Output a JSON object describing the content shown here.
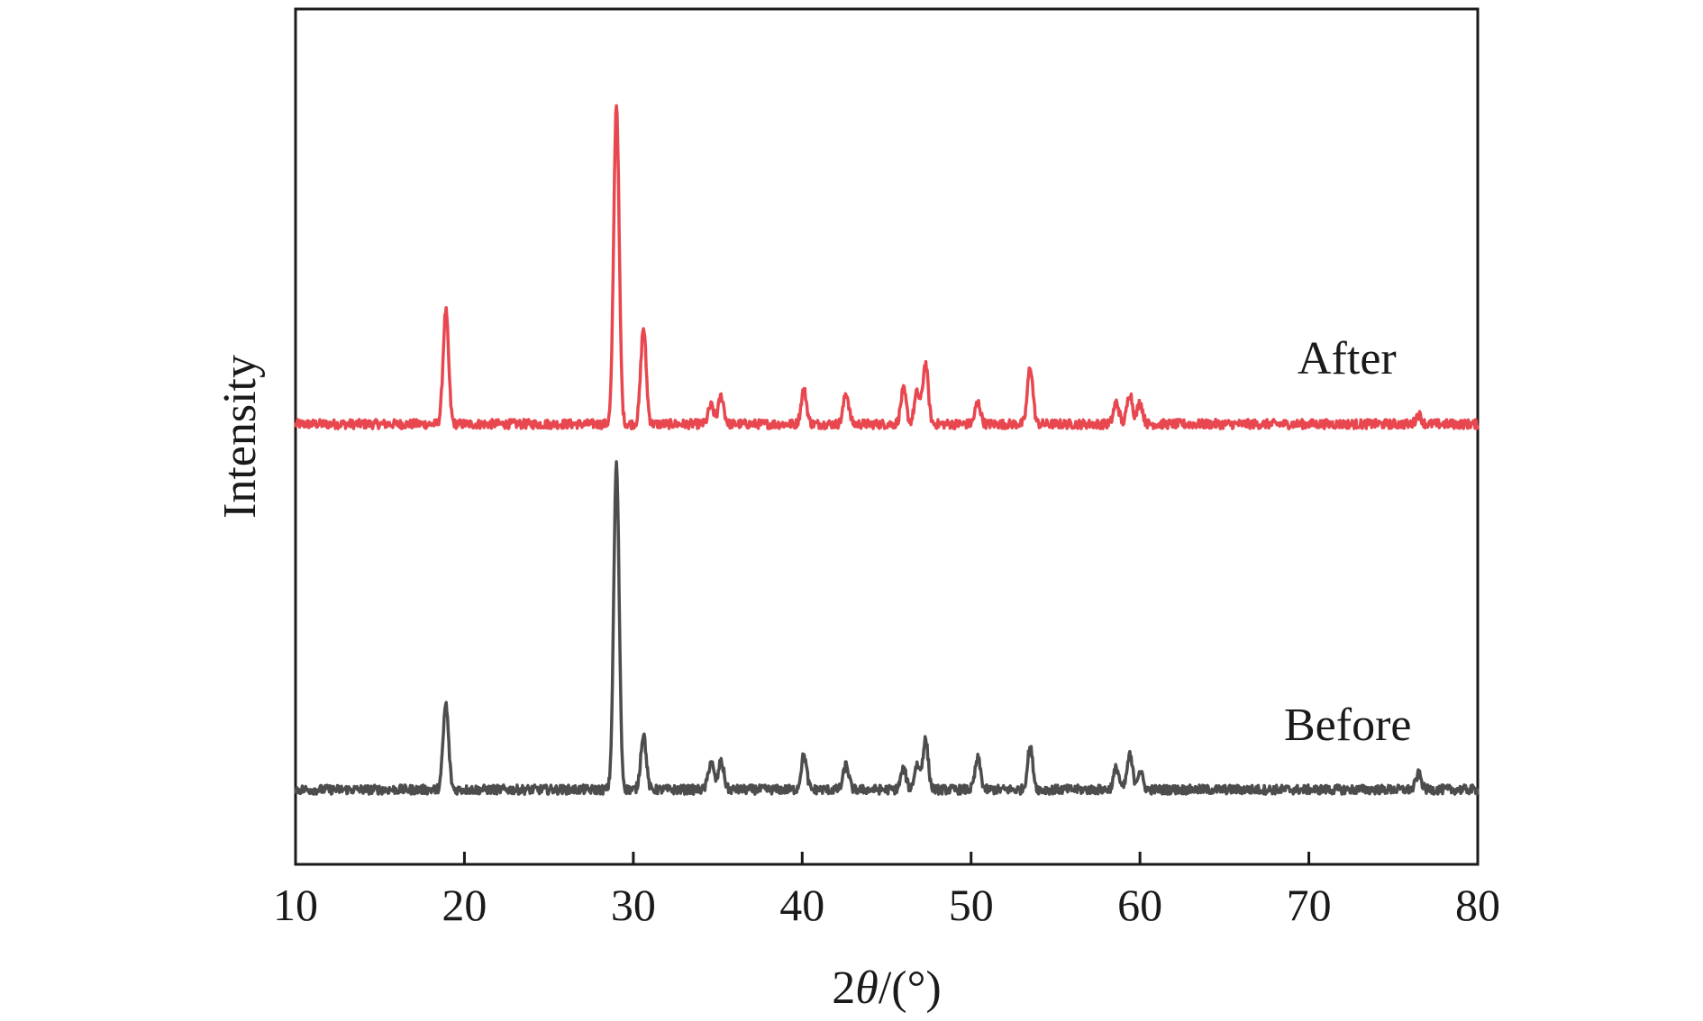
{
  "chart_data": {
    "type": "line",
    "title": "",
    "xlabel_parts": [
      "2",
      "θ",
      "/(°)"
    ],
    "ylabel": "Intensity",
    "xlim": [
      10,
      80
    ],
    "xticks": [
      10,
      20,
      30,
      40,
      50,
      60,
      70,
      80
    ],
    "xtick_labels": [
      "10",
      "20",
      "30",
      "40",
      "50",
      "60",
      "70",
      "80"
    ],
    "yticks_shown": false,
    "grid": false,
    "legend": "none",
    "peaks_2theta": [
      18.9,
      29.0,
      30.6,
      34.6,
      35.2,
      40.1,
      42.6,
      46.0,
      46.8,
      47.3,
      50.4,
      53.5,
      58.6,
      59.4,
      60.0,
      76.5
    ],
    "series": [
      {
        "name": "After",
        "color": "#e8474f",
        "relative_intensity": [
          0.73,
          2.07,
          0.62,
          0.12,
          0.18,
          0.22,
          0.2,
          0.22,
          0.2,
          0.39,
          0.14,
          0.37,
          0.14,
          0.2,
          0.14,
          0.06
        ]
      },
      {
        "name": "Before",
        "color": "#4d4d4d",
        "relative_intensity": [
          0.55,
          2.1,
          0.36,
          0.18,
          0.18,
          0.22,
          0.16,
          0.13,
          0.16,
          0.32,
          0.2,
          0.27,
          0.14,
          0.22,
          0.12,
          0.1
        ]
      }
    ]
  }
}
